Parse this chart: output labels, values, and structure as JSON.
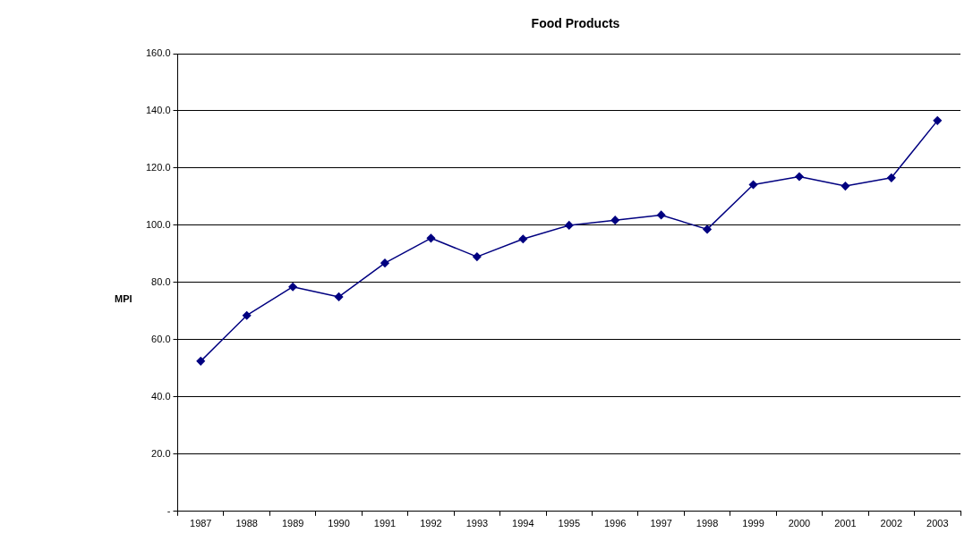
{
  "chart_data": {
    "type": "line",
    "title": "Food Products",
    "ylabel": "MPI",
    "categories": [
      "1987",
      "1988",
      "1989",
      "1990",
      "1991",
      "1992",
      "1993",
      "1994",
      "1995",
      "1996",
      "1997",
      "1998",
      "1999",
      "2000",
      "2001",
      "2002",
      "2003"
    ],
    "series": [
      {
        "color": "#000080",
        "values": [
          52.5,
          68.5,
          78.5,
          75.0,
          86.8,
          95.5,
          89.0,
          95.2,
          100.0,
          101.8,
          103.6,
          98.6,
          114.2,
          117.0,
          113.7,
          116.6,
          136.6
        ]
      }
    ],
    "ylim": [
      0,
      160
    ],
    "yticks": [
      {
        "value": 0,
        "label": "-"
      },
      {
        "value": 20,
        "label": "20.0"
      },
      {
        "value": 40,
        "label": "40.0"
      },
      {
        "value": 60,
        "label": "60.0"
      },
      {
        "value": 80,
        "label": "80.0"
      },
      {
        "value": 100,
        "label": "100.0"
      },
      {
        "value": 120,
        "label": "120.0"
      },
      {
        "value": 140,
        "label": "140.0"
      },
      {
        "value": 160,
        "label": "160.0"
      }
    ],
    "grid": "y",
    "legend": false,
    "marker": "diamond",
    "line_style": "solid"
  }
}
